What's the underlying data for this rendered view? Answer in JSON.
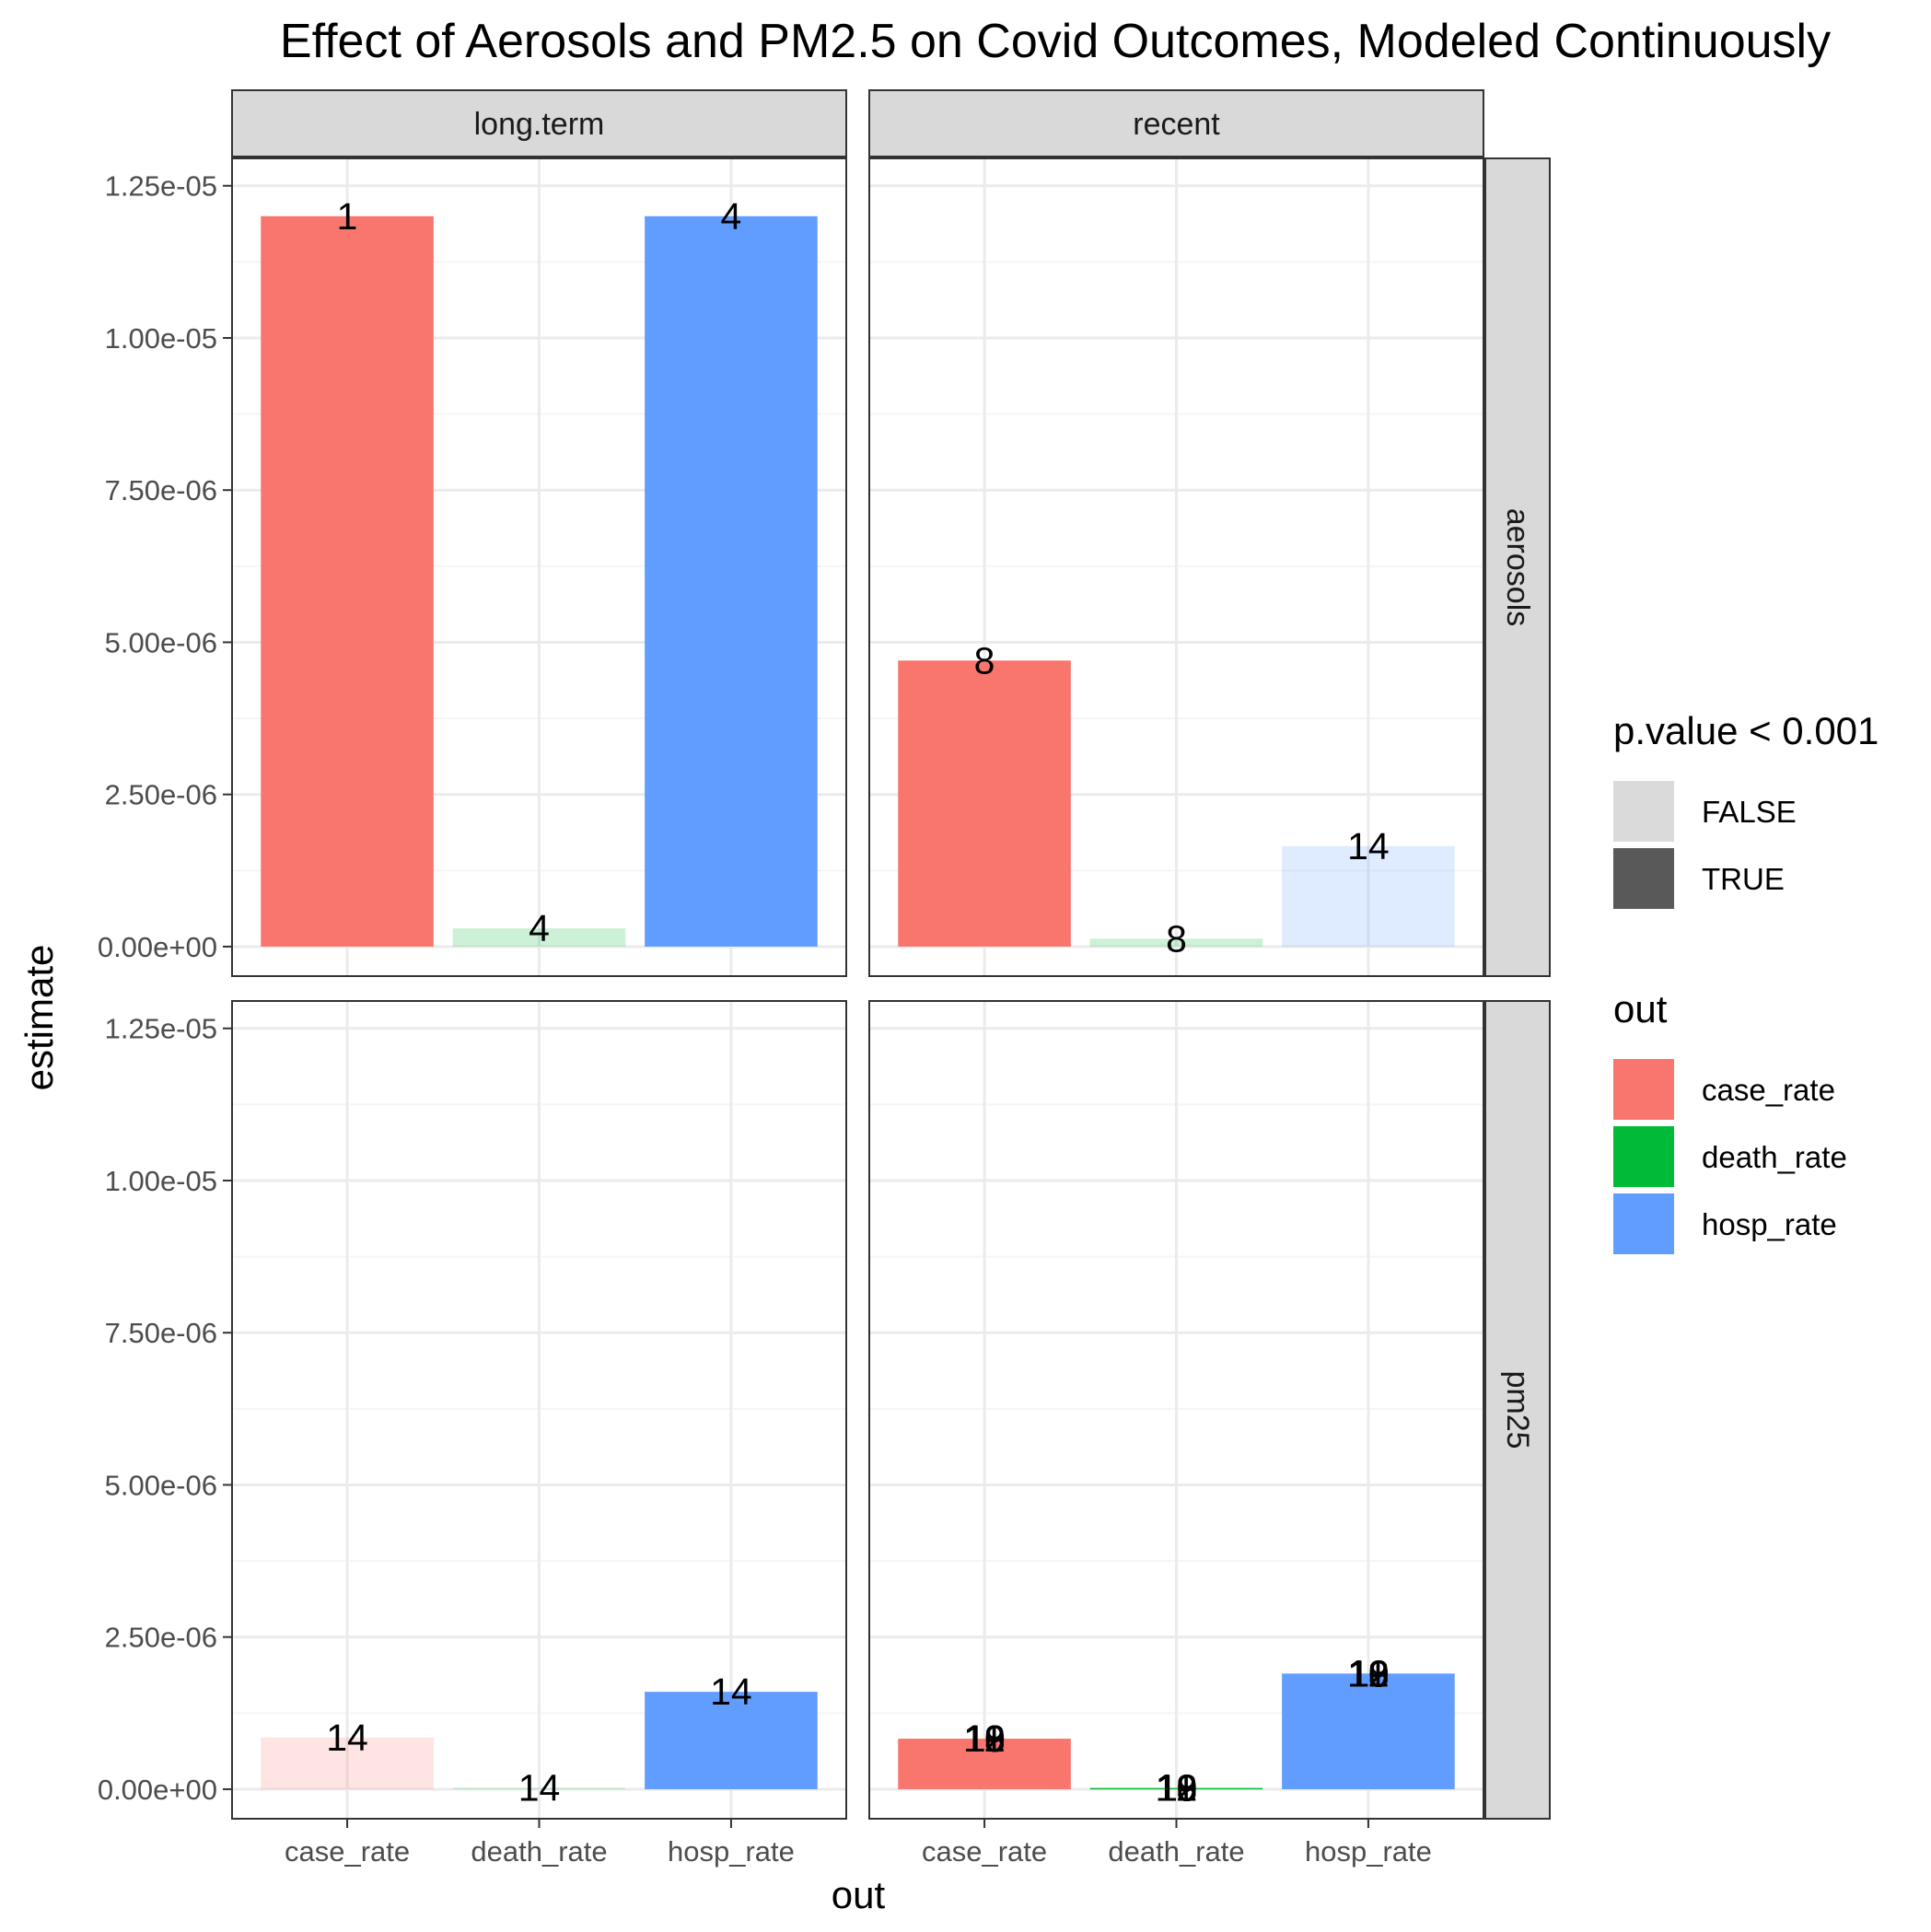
{
  "chart_data": {
    "type": "bar",
    "title": "Effect of Aerosols and PM2.5 on Covid Outcomes, Modeled Continuously",
    "xlabel": "out",
    "ylabel": "estimate",
    "categories": [
      "case_rate",
      "death_rate",
      "hosp_rate"
    ],
    "facet_columns": [
      "long.term",
      "recent"
    ],
    "facet_rows": [
      "aerosols",
      "pm25"
    ],
    "ylim": [
      -4.85e-07,
      1.295e-05
    ],
    "yticks": [
      0,
      2.5e-06,
      5e-06,
      7.5e-06,
      1e-05,
      1.25e-05
    ],
    "ytick_labels": [
      "0.00e+00",
      "2.50e-06",
      "5.00e-06",
      "7.50e-06",
      "1.00e-05",
      "1.25e-05"
    ],
    "grid": true,
    "legend_position": "right",
    "colors": {
      "case_rate": "#F8766D",
      "death_rate": "#00BA38",
      "hosp_rate": "#619CFF",
      "strip_fill": "#D9D9D9",
      "grid_major": "#EBEBEB",
      "grid_minor": "#F5F5F5",
      "panel_border": "#333333",
      "alpha_false_swatch": "#DADADA",
      "alpha_true_swatch": "#595959"
    },
    "legends": [
      {
        "title": "p.value < 0.001",
        "entries": [
          {
            "label": "FALSE",
            "color": "#DADADA"
          },
          {
            "label": "TRUE",
            "color": "#595959"
          }
        ]
      },
      {
        "title": "out",
        "entries": [
          {
            "label": "case_rate",
            "color": "#F8766D"
          },
          {
            "label": "death_rate",
            "color": "#00BA38"
          },
          {
            "label": "hosp_rate",
            "color": "#619CFF"
          }
        ]
      }
    ],
    "panels": [
      {
        "column": "long.term",
        "row": "aerosols",
        "bars": [
          {
            "category": "case_rate",
            "value": 1.2e-05,
            "significant": true,
            "labels": [
              "1"
            ]
          },
          {
            "category": "death_rate",
            "value": 3e-07,
            "significant": false,
            "labels": [
              "4"
            ]
          },
          {
            "category": "hosp_rate",
            "value": 1.2e-05,
            "significant": true,
            "labels": [
              "4"
            ]
          }
        ]
      },
      {
        "column": "recent",
        "row": "aerosols",
        "bars": [
          {
            "category": "case_rate",
            "value": 4.7e-06,
            "significant": true,
            "labels": [
              "8"
            ]
          },
          {
            "category": "death_rate",
            "value": 1.3e-07,
            "significant": false,
            "labels": [
              "8"
            ]
          },
          {
            "category": "hosp_rate",
            "value": 1.65e-06,
            "significant": false,
            "labels": [
              "14"
            ]
          }
        ]
      },
      {
        "column": "long.term",
        "row": "pm25",
        "bars": [
          {
            "category": "case_rate",
            "value": 8.5e-07,
            "significant": false,
            "labels": [
              "14"
            ]
          },
          {
            "category": "death_rate",
            "value": 2e-08,
            "significant": false,
            "labels": [
              "14"
            ]
          },
          {
            "category": "hosp_rate",
            "value": 1.6e-06,
            "significant": true,
            "labels": [
              "14"
            ]
          }
        ]
      },
      {
        "column": "recent",
        "row": "pm25",
        "bars": [
          {
            "category": "case_rate",
            "value": 8.3e-07,
            "significant": true,
            "labels": [
              "10",
              "11",
              "12",
              "13",
              "18",
              "19"
            ]
          },
          {
            "category": "death_rate",
            "value": 2e-08,
            "significant": true,
            "labels": [
              "10",
              "11",
              "12",
              "13",
              "18",
              "19"
            ]
          },
          {
            "category": "hosp_rate",
            "value": 1.9e-06,
            "significant": true,
            "labels": [
              "10",
              "11",
              "12",
              "13",
              "18",
              "19"
            ]
          }
        ]
      }
    ]
  }
}
